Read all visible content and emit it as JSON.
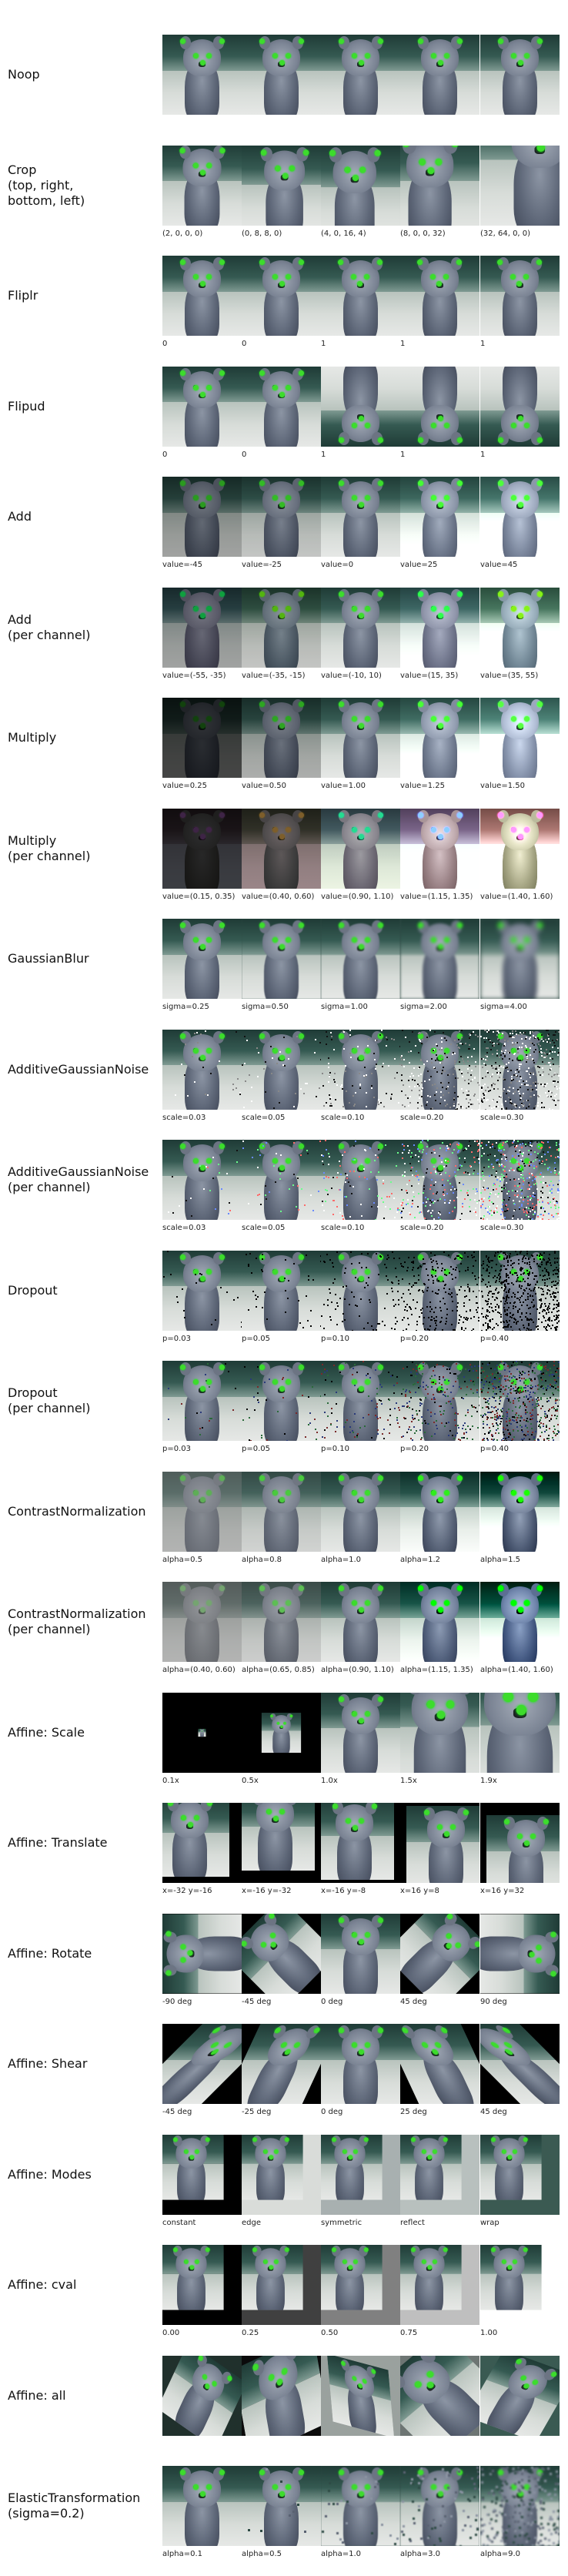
{
  "rows": [
    {
      "label": "Noop",
      "captions": [
        "",
        "",
        "",
        "",
        ""
      ]
    },
    {
      "label": "Crop\n(top, right,\nbottom, left)",
      "captions": [
        "(2, 0, 0, 0)",
        "(0, 8, 8, 0)",
        "(4, 0, 16, 4)",
        "(8, 0, 0, 32)",
        "(32, 64, 0, 0)"
      ]
    },
    {
      "label": "Fliplr",
      "captions": [
        "0",
        "0",
        "1",
        "1",
        "1"
      ]
    },
    {
      "label": "Flipud",
      "captions": [
        "0",
        "0",
        "1",
        "1",
        "1"
      ]
    },
    {
      "label": "Add",
      "captions": [
        "value=-45",
        "value=-25",
        "value=0",
        "value=25",
        "value=45"
      ]
    },
    {
      "label": "Add\n(per channel)",
      "captions": [
        "value=(-55, -35)",
        "value=(-35, -15)",
        "value=(-10, 10)",
        "value=(15, 35)",
        "value=(35, 55)"
      ]
    },
    {
      "label": "Multiply",
      "captions": [
        "value=0.25",
        "value=0.50",
        "value=1.00",
        "value=1.25",
        "value=1.50"
      ]
    },
    {
      "label": "Multiply\n(per channel)",
      "captions": [
        "value=(0.15, 0.35)",
        "value=(0.40, 0.60)",
        "value=(0.90, 1.10)",
        "value=(1.15, 1.35)",
        "value=(1.40, 1.60)"
      ]
    },
    {
      "label": "GaussianBlur",
      "captions": [
        "sigma=0.25",
        "sigma=0.50",
        "sigma=1.00",
        "sigma=2.00",
        "sigma=4.00"
      ]
    },
    {
      "label": "AdditiveGaussianNoise",
      "captions": [
        "scale=0.03",
        "scale=0.05",
        "scale=0.10",
        "scale=0.20",
        "scale=0.30"
      ]
    },
    {
      "label": "AdditiveGaussianNoise\n(per channel)",
      "captions": [
        "scale=0.03",
        "scale=0.05",
        "scale=0.10",
        "scale=0.20",
        "scale=0.30"
      ]
    },
    {
      "label": "Dropout",
      "captions": [
        "p=0.03",
        "p=0.05",
        "p=0.10",
        "p=0.20",
        "p=0.40"
      ]
    },
    {
      "label": "Dropout\n(per channel)",
      "captions": [
        "p=0.03",
        "p=0.05",
        "p=0.10",
        "p=0.20",
        "p=0.40"
      ]
    },
    {
      "label": "ContrastNormalization",
      "captions": [
        "alpha=0.5",
        "alpha=0.8",
        "alpha=1.0",
        "alpha=1.2",
        "alpha=1.5"
      ]
    },
    {
      "label": "ContrastNormalization\n(per channel)",
      "captions": [
        "alpha=(0.40, 0.60)",
        "alpha=(0.65, 0.85)",
        "alpha=(0.90, 1.10)",
        "alpha=(1.15, 1.35)",
        "alpha=(1.40, 1.60)"
      ]
    },
    {
      "label": "Affine: Scale",
      "captions": [
        "0.1x",
        "0.5x",
        "1.0x",
        "1.5x",
        "1.9x"
      ]
    },
    {
      "label": "Affine: Translate",
      "captions": [
        "x=-32 y=-16",
        "x=-16 y=-32",
        "x=-16 y=-8",
        "x=16 y=8",
        "x=16 y=32"
      ]
    },
    {
      "label": "Affine: Rotate",
      "captions": [
        "-90 deg",
        "-45 deg",
        "0 deg",
        "45 deg",
        "90 deg"
      ]
    },
    {
      "label": "Affine: Shear",
      "captions": [
        "-45 deg",
        "-25 deg",
        "0 deg",
        "25 deg",
        "45 deg"
      ]
    },
    {
      "label": "Affine: Modes",
      "captions": [
        "constant",
        "edge",
        "symmetric",
        "reflect",
        "wrap"
      ]
    },
    {
      "label": "Affine: cval",
      "captions": [
        "0.00",
        "0.25",
        "0.50",
        "0.75",
        "1.00"
      ]
    },
    {
      "label": "Affine: all",
      "captions": [
        "",
        "",
        "",
        "",
        ""
      ]
    },
    {
      "label": "ElasticTransformation\n(sigma=0.2)",
      "captions": [
        "alpha=0.1",
        "alpha=0.5",
        "alpha=1.0",
        "alpha=3.0",
        "alpha=9.0"
      ]
    }
  ],
  "colors": {
    "keypoint": "#3ddc2c",
    "background": "#ffffff"
  },
  "icons": {
    "thumbnail": "quokka-image",
    "keypoint": "keypoint-marker-icon"
  }
}
